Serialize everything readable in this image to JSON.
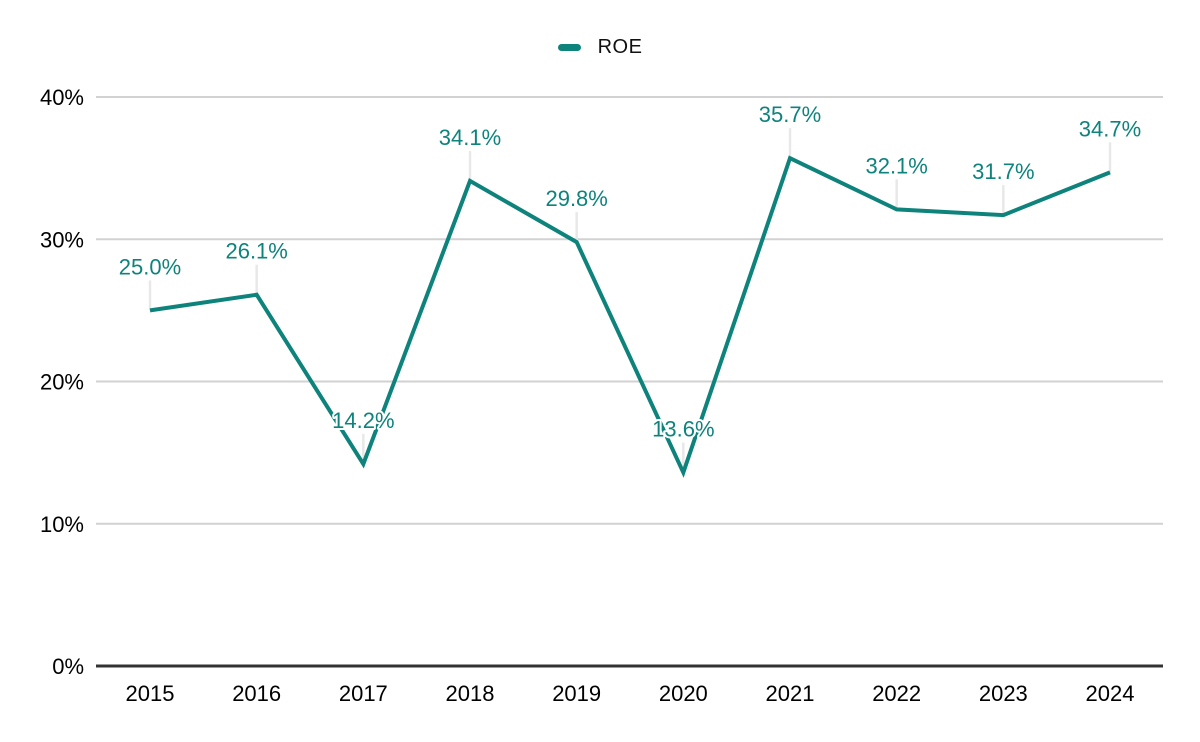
{
  "legend": {
    "label": "ROE"
  },
  "chart_data": {
    "type": "line",
    "title": "",
    "xlabel": "",
    "ylabel": "",
    "legend_position": "top-center",
    "grid": true,
    "categories": [
      "2015",
      "2016",
      "2017",
      "2018",
      "2019",
      "2020",
      "2021",
      "2022",
      "2023",
      "2024"
    ],
    "series": [
      {
        "name": "ROE",
        "values": [
          25.0,
          26.1,
          14.2,
          34.1,
          29.8,
          13.6,
          35.7,
          32.1,
          31.7,
          34.7
        ],
        "labels": [
          "25.0%",
          "26.1%",
          "14.2%",
          "34.1%",
          "29.8%",
          "13.6%",
          "35.7%",
          "32.1%",
          "31.7%",
          "34.7%"
        ]
      }
    ],
    "ylim": [
      0,
      40
    ],
    "yticks": [
      {
        "value": 0,
        "label": "0%"
      },
      {
        "value": 10,
        "label": "10%"
      },
      {
        "value": 20,
        "label": "20%"
      },
      {
        "value": 30,
        "label": "30%"
      },
      {
        "value": 40,
        "label": "40%"
      }
    ],
    "colors": {
      "series": "#0e837c",
      "grid": "#d2d2d2",
      "axis": "#333333",
      "leader": "#e8e8e8",
      "tick_text": "#000000",
      "background": "#ffffff"
    }
  }
}
